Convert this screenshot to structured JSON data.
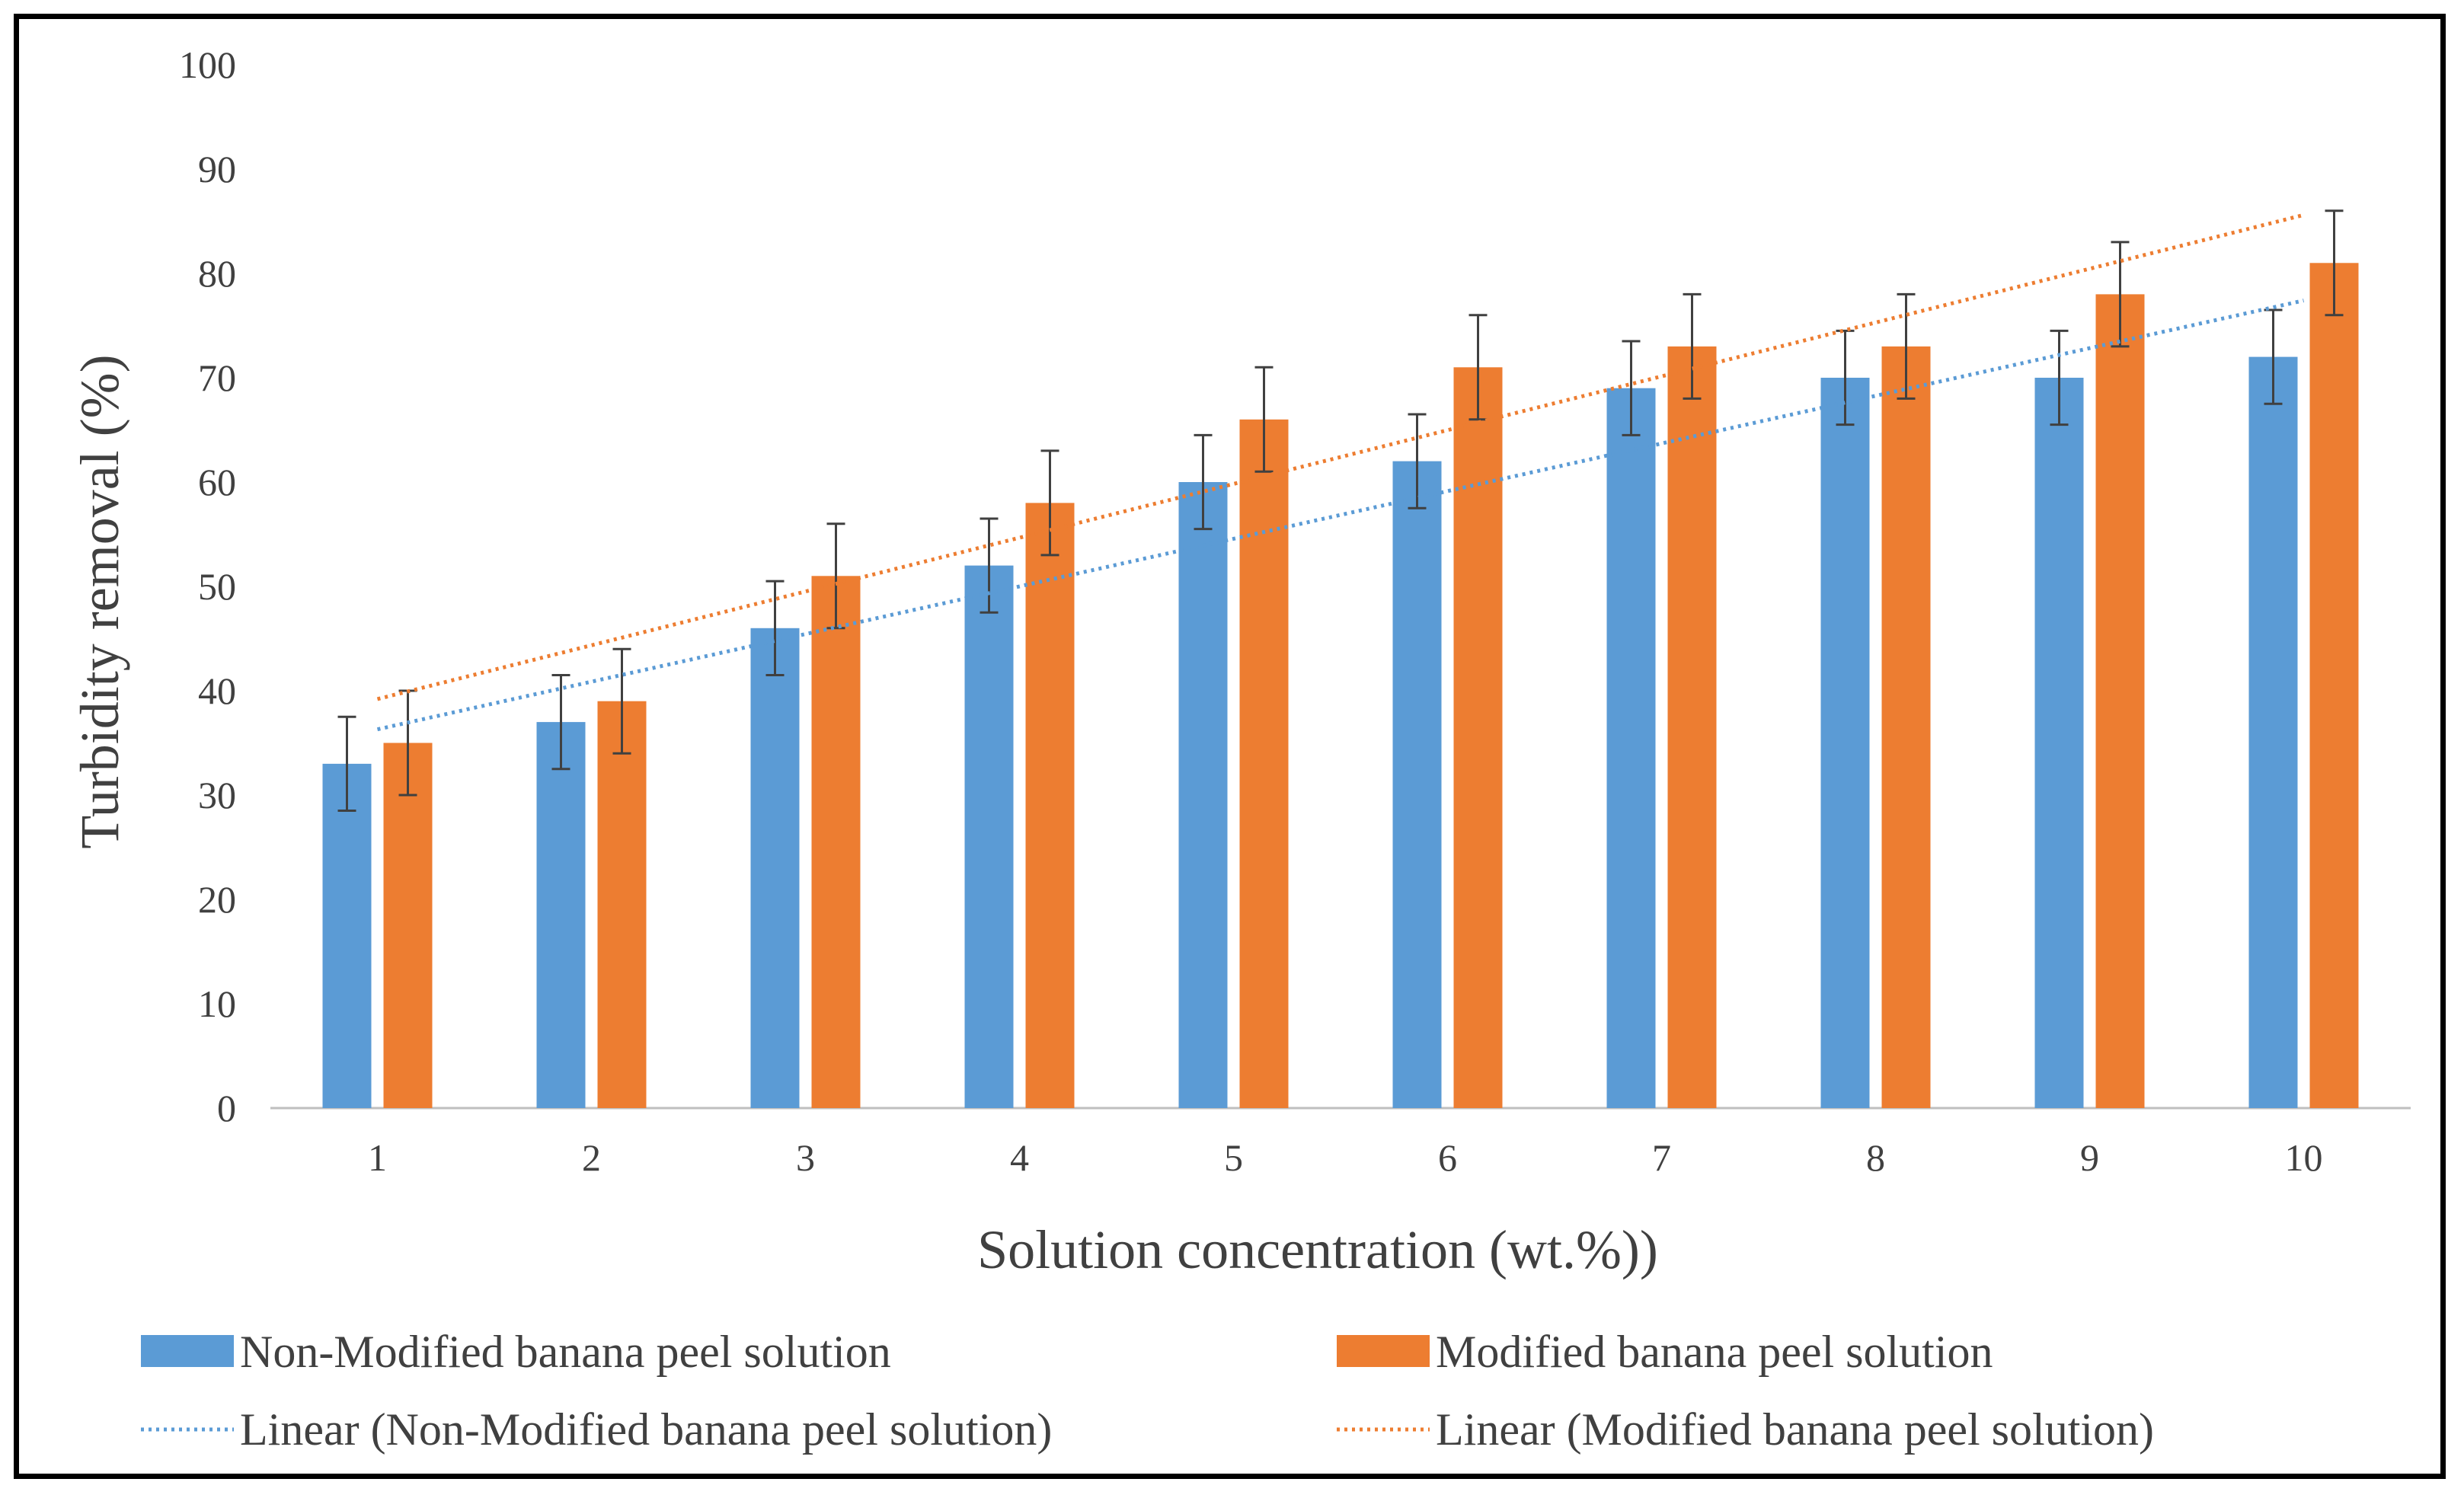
{
  "chart_data": {
    "type": "bar",
    "title": "",
    "xlabel": "Solution concentration (wt.%))",
    "ylabel": "Turbidity removal (%)",
    "ylim": [
      0,
      100
    ],
    "yticks": [
      0,
      10,
      20,
      30,
      40,
      50,
      60,
      70,
      80,
      90,
      100
    ],
    "categories": [
      "1",
      "2",
      "3",
      "4",
      "5",
      "6",
      "7",
      "8",
      "9",
      "10"
    ],
    "grid": false,
    "series": [
      {
        "name": "Non-Modified banana peel solution",
        "color": "#5B9BD5",
        "values": [
          33,
          37,
          46,
          52,
          60,
          62,
          69,
          70,
          70,
          72
        ],
        "error": [
          4.5,
          4.5,
          4.5,
          4.5,
          4.5,
          4.5,
          4.5,
          4.5,
          4.5,
          4.5
        ]
      },
      {
        "name": "Modified banana peel solution",
        "color": "#ED7D31",
        "values": [
          35,
          39,
          51,
          58,
          66,
          71,
          73,
          73,
          78,
          81
        ],
        "error": [
          5,
          5,
          5,
          5,
          5,
          5,
          5,
          5,
          5,
          5
        ]
      }
    ],
    "trendlines": [
      {
        "name": "Linear (Non-Modified banana peel solution)",
        "color": "#5B9BD5",
        "style": "dotted",
        "start": [
          1,
          36.3
        ],
        "end": [
          10,
          77.4
        ]
      },
      {
        "name": "Linear (Modified banana peel solution)",
        "color": "#ED7D31",
        "style": "dotted",
        "start": [
          1,
          39.2
        ],
        "end": [
          10,
          85.6
        ]
      }
    ],
    "legend_position": "bottom",
    "error_bar_color": "#404040"
  }
}
